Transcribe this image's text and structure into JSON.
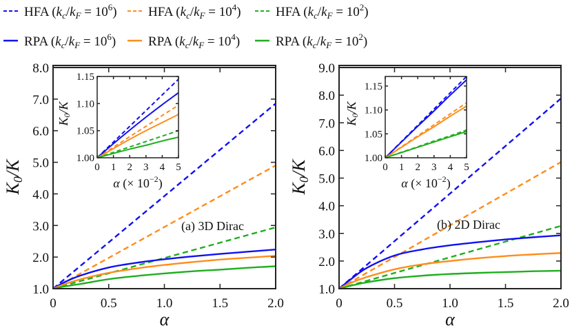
{
  "legend": {
    "items": [
      {
        "method": "HFA",
        "var": "k",
        "sub1": "c",
        "sub2": "F",
        "base": "10",
        "exp": "6",
        "color": "#1010f0",
        "style": "dashed"
      },
      {
        "method": "HFA",
        "var": "k",
        "sub1": "c",
        "sub2": "F",
        "base": "10",
        "exp": "4",
        "color": "#ff8c1a",
        "style": "dashed"
      },
      {
        "method": "HFA",
        "var": "k",
        "sub1": "c",
        "sub2": "F",
        "base": "10",
        "exp": "2",
        "color": "#1fae1f",
        "style": "dashed"
      },
      {
        "method": "RPA",
        "var": "k",
        "sub1": "c",
        "sub2": "F",
        "base": "10",
        "exp": "6",
        "color": "#1010f0",
        "style": "solid"
      },
      {
        "method": "RPA",
        "var": "k",
        "sub1": "c",
        "sub2": "F",
        "base": "10",
        "exp": "4",
        "color": "#ff8c1a",
        "style": "solid"
      },
      {
        "method": "RPA",
        "var": "k",
        "sub1": "c",
        "sub2": "F",
        "base": "10",
        "exp": "2",
        "color": "#1fae1f",
        "style": "solid"
      }
    ]
  },
  "chart_data": [
    {
      "type": "line",
      "annotation": "(a) 3D Dirac",
      "xlabel": "α",
      "ylabel": {
        "sym": "K",
        "sub": "0",
        "rest": "/K"
      },
      "xlim": [
        0,
        2.0
      ],
      "ylim": [
        1.0,
        8.0
      ],
      "xticks": [
        "0",
        "0.5",
        "1.0",
        "1.5",
        "2.0"
      ],
      "yticks": [
        "1.0",
        "2.0",
        "3.0",
        "4.0",
        "5.0",
        "6.0",
        "7.0",
        "8.0"
      ],
      "x": [
        0,
        0.1,
        0.25,
        0.5,
        0.75,
        1.0,
        1.25,
        1.5,
        1.75,
        2.0
      ],
      "series": [
        {
          "legend_index": 0,
          "values": [
            1,
            1.293,
            1.733,
            2.465,
            3.198,
            3.93,
            4.663,
            5.395,
            6.128,
            6.86
          ]
        },
        {
          "legend_index": 1,
          "values": [
            1,
            1.195,
            1.488,
            1.975,
            2.463,
            2.95,
            3.438,
            3.925,
            4.413,
            4.9
          ]
        },
        {
          "legend_index": 2,
          "values": [
            1,
            1.097,
            1.243,
            1.485,
            1.728,
            1.97,
            2.213,
            2.455,
            2.698,
            2.94
          ]
        },
        {
          "legend_index": 3,
          "values": [
            1,
            1.2,
            1.42,
            1.67,
            1.82,
            1.93,
            2.02,
            2.1,
            2.17,
            2.24
          ]
        },
        {
          "legend_index": 4,
          "values": [
            1,
            1.14,
            1.3,
            1.5,
            1.64,
            1.75,
            1.84,
            1.92,
            1.98,
            2.04
          ]
        },
        {
          "legend_index": 5,
          "values": [
            1,
            1.07,
            1.15,
            1.3,
            1.4,
            1.48,
            1.55,
            1.6,
            1.66,
            1.71
          ]
        }
      ],
      "inset": {
        "xlabel": {
          "text": "α (× 10",
          "exp": "−2",
          "close": ")"
        },
        "ylabel": {
          "sym": "K",
          "sub": "0",
          "rest": "/K"
        },
        "xlim": [
          0,
          5
        ],
        "ylim": [
          1.0,
          1.15
        ],
        "xticks": [
          "0",
          "1",
          "2",
          "3",
          "4",
          "5"
        ],
        "yticks": [
          "1.00",
          "1.05",
          "1.10",
          "1.15"
        ],
        "x": [
          0,
          1,
          2,
          3,
          4,
          5
        ],
        "series": [
          {
            "legend_index": 0,
            "values": [
              1,
              1.029,
              1.058,
              1.087,
              1.116,
              1.145
            ]
          },
          {
            "legend_index": 1,
            "values": [
              1,
              1.0195,
              1.039,
              1.058,
              1.078,
              1.097
            ]
          },
          {
            "legend_index": 2,
            "values": [
              1,
              1.01,
              1.02,
              1.03,
              1.04,
              1.05
            ]
          },
          {
            "legend_index": 3,
            "values": [
              1,
              1.026,
              1.051,
              1.075,
              1.098,
              1.12
            ]
          },
          {
            "legend_index": 4,
            "values": [
              1,
              1.017,
              1.034,
              1.05,
              1.065,
              1.08
            ]
          },
          {
            "legend_index": 5,
            "values": [
              1,
              1.008,
              1.016,
              1.023,
              1.031,
              1.038
            ]
          }
        ]
      }
    },
    {
      "type": "line",
      "annotation": "(b) 2D Dirac",
      "xlabel": "α",
      "ylabel": {
        "sym": "K",
        "sub": "0",
        "rest": "/K"
      },
      "xlim": [
        0,
        2.0
      ],
      "ylim": [
        1.0,
        9.0
      ],
      "xticks": [
        "0",
        "0.5",
        "1.0",
        "1.5",
        "2.0"
      ],
      "yticks": [
        "1.0",
        "2.0",
        "3.0",
        "4.0",
        "5.0",
        "6.0",
        "7.0",
        "8.0",
        "9.0"
      ],
      "x": [
        0,
        0.1,
        0.25,
        0.5,
        0.75,
        1.0,
        1.25,
        1.5,
        1.75,
        2.0
      ],
      "series": [
        {
          "legend_index": 0,
          "values": [
            1,
            1.344,
            1.86,
            2.72,
            3.58,
            4.44,
            5.3,
            6.16,
            7.02,
            7.88
          ]
        },
        {
          "legend_index": 1,
          "values": [
            1,
            1.229,
            1.574,
            2.145,
            2.718,
            3.29,
            3.863,
            4.435,
            5.008,
            5.58
          ]
        },
        {
          "legend_index": 2,
          "values": [
            1,
            1.114,
            1.284,
            1.568,
            1.851,
            2.135,
            2.419,
            2.703,
            2.986,
            3.27
          ]
        },
        {
          "legend_index": 3,
          "values": [
            1,
            1.32,
            1.75,
            2.2,
            2.42,
            2.57,
            2.68,
            2.78,
            2.86,
            2.93
          ]
        },
        {
          "legend_index": 4,
          "values": [
            1,
            1.2,
            1.42,
            1.7,
            1.88,
            2.0,
            2.1,
            2.18,
            2.24,
            2.29
          ]
        },
        {
          "legend_index": 5,
          "values": [
            1,
            1.1,
            1.23,
            1.38,
            1.47,
            1.53,
            1.57,
            1.6,
            1.63,
            1.65
          ]
        }
      ],
      "inset": {
        "xlabel": {
          "text": "α (× 10",
          "exp": "−2",
          "close": ")"
        },
        "ylabel": {
          "sym": "K",
          "sub": "0",
          "rest": "/K"
        },
        "xlim": [
          0,
          5
        ],
        "ylim": [
          1.0,
          1.17
        ],
        "xticks": [
          "0",
          "1",
          "2",
          "3",
          "4",
          "5"
        ],
        "yticks": [
          "1.00",
          "1.05",
          "1.10",
          "1.15"
        ],
        "x": [
          0,
          1,
          2,
          3,
          4,
          5
        ],
        "series": [
          {
            "legend_index": 0,
            "values": [
              1,
              1.034,
              1.068,
              1.102,
              1.136,
              1.17
            ]
          },
          {
            "legend_index": 1,
            "values": [
              1,
              1.023,
              1.046,
              1.069,
              1.092,
              1.115
            ]
          },
          {
            "legend_index": 2,
            "values": [
              1,
              1.0116,
              1.023,
              1.035,
              1.046,
              1.058
            ]
          },
          {
            "legend_index": 3,
            "values": [
              1,
              1.033,
              1.066,
              1.098,
              1.131,
              1.163
            ]
          },
          {
            "legend_index": 4,
            "values": [
              1,
              1.022,
              1.044,
              1.065,
              1.087,
              1.108
            ]
          },
          {
            "legend_index": 5,
            "values": [
              1,
              1.011,
              1.022,
              1.033,
              1.044,
              1.055
            ]
          }
        ]
      }
    }
  ]
}
